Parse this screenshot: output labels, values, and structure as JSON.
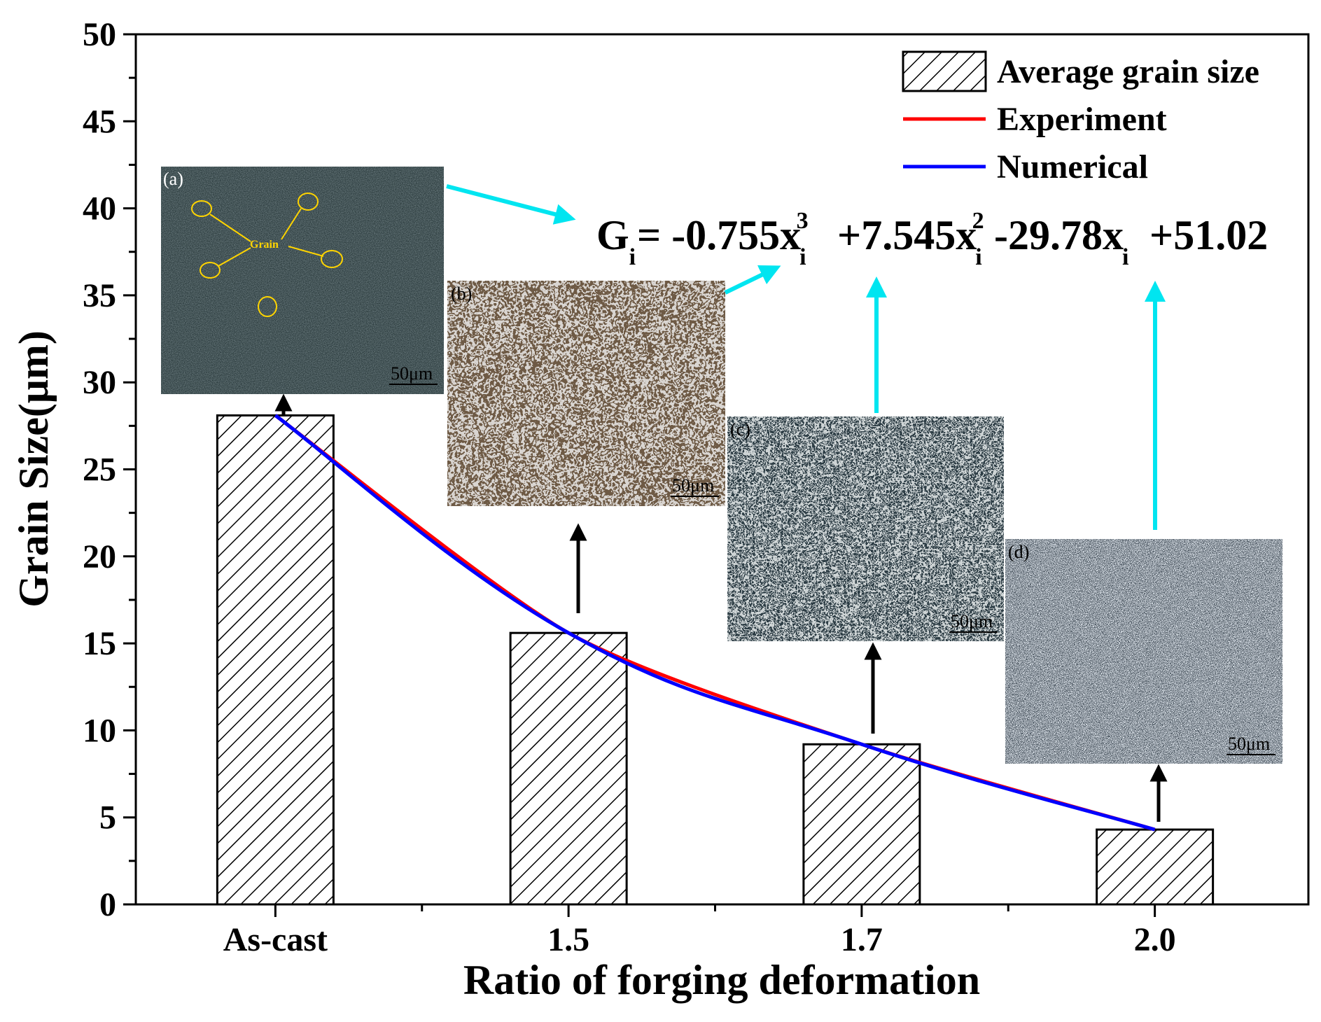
{
  "chart_data": {
    "type": "bar",
    "title": "",
    "xlabel": "Ratio of forging deformation",
    "ylabel": "Grain Size(μm)",
    "categories": [
      "As-cast",
      "1.5",
      "1.7",
      "2.0"
    ],
    "ylim": [
      0,
      50
    ],
    "yticks": [
      0,
      5,
      10,
      15,
      20,
      25,
      30,
      35,
      40,
      45,
      50
    ],
    "grid": false,
    "legend_position": "top-right",
    "series": [
      {
        "name": "Average grain size",
        "kind": "bar",
        "pattern": "hatched",
        "values": [
          28.1,
          15.6,
          9.2,
          4.3
        ]
      },
      {
        "name": "Experiment",
        "kind": "line",
        "color": "#ff0000",
        "values": [
          28.1,
          15.6,
          9.2,
          4.3
        ]
      },
      {
        "name": "Numerical",
        "kind": "line",
        "color": "#0000ff",
        "values": [
          28.1,
          15.6,
          9.2,
          4.3
        ]
      }
    ],
    "equation": {
      "lhs": "G",
      "lhs_sub": "i",
      "parts": [
        {
          "text": "= -0.755x",
          "sub": "i",
          "sup": "3"
        },
        {
          "text": "+7.545x",
          "sub": "i",
          "sup": "2"
        },
        {
          "text": "-29.78x",
          "sub": "i",
          "sup": ""
        },
        {
          "text": "+51.02",
          "sub": "",
          "sup": ""
        }
      ]
    },
    "micrographs": [
      {
        "label": "(a)",
        "scale": "50μm",
        "annotation": "Grain"
      },
      {
        "label": "(b)",
        "scale": "50μm"
      },
      {
        "label": "(c)",
        "scale": "50μm"
      },
      {
        "label": "(d)",
        "scale": "50μm"
      }
    ],
    "colors": {
      "arrow_cyan": "#00e5f0",
      "arrow_black": "#000000"
    }
  }
}
